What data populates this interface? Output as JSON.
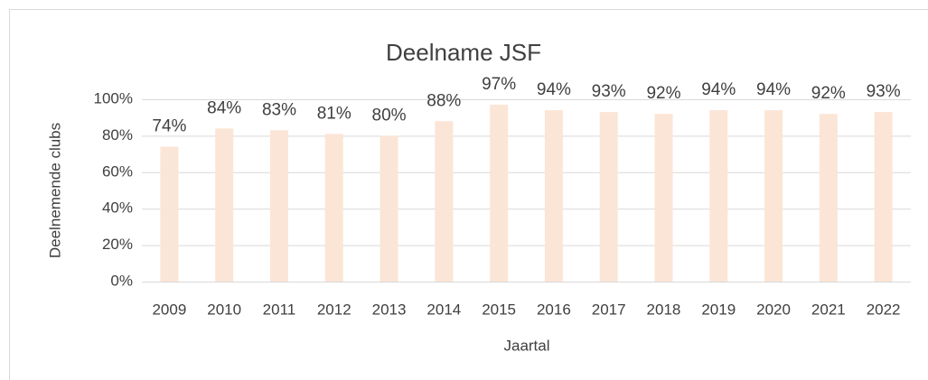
{
  "chart_data": {
    "type": "bar",
    "title": "Deelname JSF",
    "x_label": "Jaartal",
    "y_label": "Deelnemende clubs",
    "categories": [
      "2009",
      "2010",
      "2011",
      "2012",
      "2013",
      "2014",
      "2015",
      "2016",
      "2017",
      "2018",
      "2019",
      "2020",
      "2021",
      "2022"
    ],
    "values": [
      74,
      84,
      83,
      81,
      80,
      88,
      97,
      94,
      93,
      92,
      94,
      94,
      92,
      93
    ],
    "value_labels": [
      "74%",
      "84%",
      "83%",
      "81%",
      "80%",
      "88%",
      "97%",
      "94%",
      "93%",
      "92%",
      "94%",
      "94%",
      "92%",
      "93%"
    ],
    "color": "#fbe5d6",
    "ylim": [
      0,
      100
    ],
    "yticks": [
      {
        "value": 0,
        "label": "0%"
      },
      {
        "value": 20,
        "label": "20%"
      },
      {
        "value": 40,
        "label": "40%"
      },
      {
        "value": 60,
        "label": "60%"
      },
      {
        "value": 80,
        "label": "80%"
      },
      {
        "value": 100,
        "label": "100%"
      }
    ],
    "grid": true
  }
}
